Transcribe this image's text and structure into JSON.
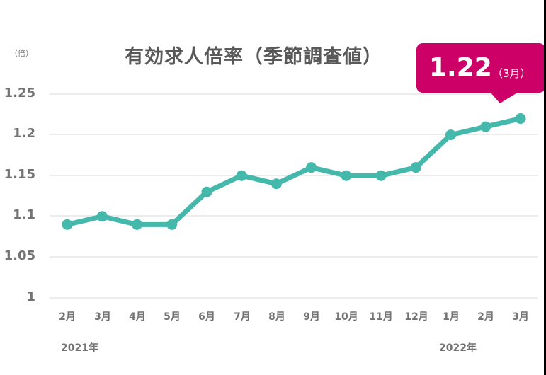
{
  "header": {
    "title": "有効求人倍率（季節調査値）",
    "unit": "（倍）"
  },
  "callout": {
    "value": "1.22",
    "month": "（3月）",
    "color": "#cc0066"
  },
  "axis": {
    "y_ticks": [
      "1.25",
      "1.2",
      "1.15",
      "1.1",
      "1.05",
      "1"
    ],
    "x_ticks": [
      "2月",
      "3月",
      "4月",
      "5月",
      "6月",
      "7月",
      "8月",
      "9月",
      "10月",
      "11月",
      "12月",
      "1月",
      "2月",
      "3月"
    ],
    "year_labels": [
      "2021年",
      "2022年"
    ]
  },
  "colors": {
    "line": "#45b8ac",
    "grid": "#e6e6e6",
    "text": "#737373"
  },
  "chart_data": {
    "type": "line",
    "title": "有効求人倍率（季節調査値）",
    "xlabel": "",
    "ylabel": "（倍）",
    "categories": [
      "2021年2月",
      "2021年3月",
      "2021年4月",
      "2021年5月",
      "2021年6月",
      "2021年7月",
      "2021年8月",
      "2021年9月",
      "2021年10月",
      "2021年11月",
      "2021年12月",
      "2022年1月",
      "2022年2月",
      "2022年3月"
    ],
    "series": [
      {
        "name": "有効求人倍率",
        "values": [
          1.09,
          1.1,
          1.09,
          1.09,
          1.13,
          1.15,
          1.14,
          1.16,
          1.15,
          1.15,
          1.16,
          1.2,
          1.21,
          1.22
        ]
      }
    ],
    "ylim": [
      1.0,
      1.25
    ],
    "yticks": [
      1,
      1.05,
      1.1,
      1.15,
      1.2,
      1.25
    ],
    "grid": true,
    "legend": "none",
    "annotations": [
      {
        "label": "1.22（3月）",
        "x": "2022年3月"
      }
    ]
  }
}
